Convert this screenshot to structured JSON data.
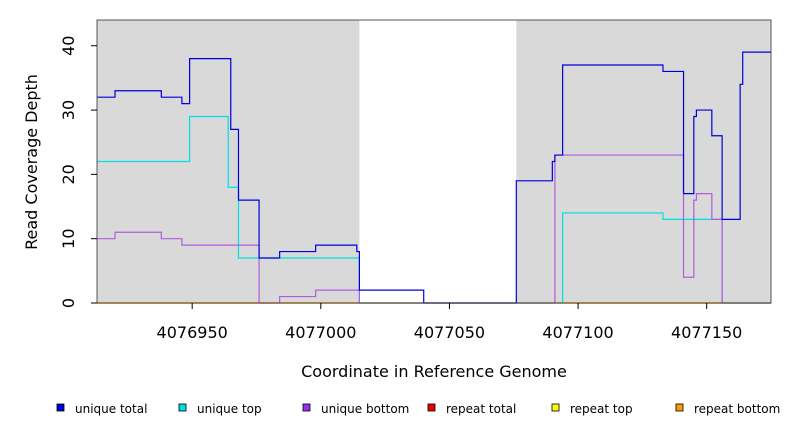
{
  "chart_data": {
    "type": "line",
    "step": true,
    "xlabel": "Coordinate in Reference Genome",
    "ylabel": "Read Coverage Depth",
    "xlim": [
      4076913,
      4077175
    ],
    "ylim": [
      0,
      44
    ],
    "x_ticks": [
      4076950,
      4077000,
      4077050,
      4077100,
      4077150
    ],
    "y_ticks": [
      0,
      10,
      20,
      30,
      40
    ],
    "shaded_regions": [
      {
        "from": 4076913,
        "to": 4077015
      },
      {
        "from": 4077076,
        "to": 4077175
      }
    ],
    "series": [
      {
        "name": "unique total",
        "color": "#0000dd",
        "points": [
          [
            4076913,
            32
          ],
          [
            4076920,
            33
          ],
          [
            4076938,
            32
          ],
          [
            4076946,
            31
          ],
          [
            4076949,
            38
          ],
          [
            4076965,
            27
          ],
          [
            4076968,
            16
          ],
          [
            4076976,
            7
          ],
          [
            4076984,
            8
          ],
          [
            4076998,
            9
          ],
          [
            4077014,
            8
          ],
          [
            4077015,
            2
          ],
          [
            4077040,
            0
          ],
          [
            4077076,
            19
          ],
          [
            4077090,
            22
          ],
          [
            4077091,
            23
          ],
          [
            4077094,
            37
          ],
          [
            4077133,
            36
          ],
          [
            4077141,
            17
          ],
          [
            4077145,
            29
          ],
          [
            4077146,
            30
          ],
          [
            4077152,
            26
          ],
          [
            4077156,
            13
          ],
          [
            4077163,
            34
          ],
          [
            4077164,
            39
          ],
          [
            4077175,
            39
          ]
        ]
      },
      {
        "name": "unique top",
        "color": "#00e0e0",
        "points": [
          [
            4076913,
            22
          ],
          [
            4076949,
            29
          ],
          [
            4076964,
            18
          ],
          [
            4076968,
            7
          ],
          [
            4077015,
            0
          ],
          [
            4077094,
            14
          ],
          [
            4077133,
            13
          ],
          [
            4077156,
            0
          ],
          [
            4077175,
            0
          ]
        ]
      },
      {
        "name": "unique bottom",
        "color": "#b05ce0",
        "points": [
          [
            4076913,
            10
          ],
          [
            4076920,
            11
          ],
          [
            4076938,
            10
          ],
          [
            4076946,
            9
          ],
          [
            4076976,
            0
          ],
          [
            4076984,
            1
          ],
          [
            4076998,
            2
          ],
          [
            4077015,
            0
          ],
          [
            4077091,
            23
          ],
          [
            4077141,
            4
          ],
          [
            4077145,
            16
          ],
          [
            4077146,
            17
          ],
          [
            4077152,
            13
          ],
          [
            4077156,
            0
          ],
          [
            4077175,
            0
          ]
        ]
      },
      {
        "name": "repeat total",
        "color": "#ee0000",
        "points": [
          [
            4076913,
            0
          ],
          [
            4077175,
            0
          ]
        ]
      },
      {
        "name": "repeat top",
        "color": "#e8e800",
        "points": [
          [
            4076913,
            0
          ],
          [
            4077175,
            0
          ]
        ]
      },
      {
        "name": "repeat bottom",
        "color": "#ff9900",
        "points": [
          [
            4076913,
            0
          ],
          [
            4077175,
            0
          ]
        ]
      }
    ],
    "legend": {
      "placement": "bottom",
      "items": [
        {
          "label": "unique total",
          "color": "#0000dd"
        },
        {
          "label": "unique top",
          "color": "#00e0e0"
        },
        {
          "label": "unique bottom",
          "color": "#9b30f0"
        },
        {
          "label": "repeat total",
          "color": "#ee0000"
        },
        {
          "label": "repeat top",
          "color": "#ffff00"
        },
        {
          "label": "repeat bottom",
          "color": "#ff9900"
        }
      ]
    },
    "background_color": "#d9d9d9"
  }
}
